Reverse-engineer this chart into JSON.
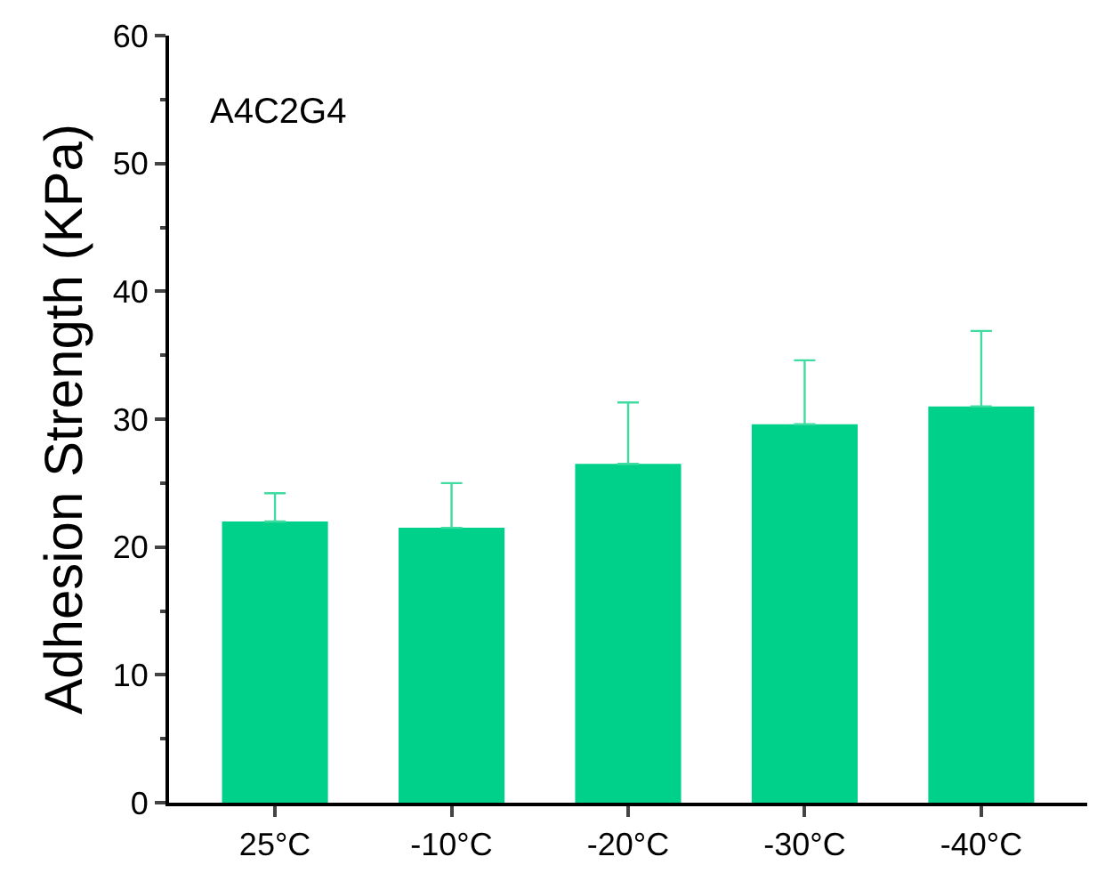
{
  "chart_data": {
    "type": "bar",
    "ylabel": "Adhesion Strength (KPa)",
    "annotations": [
      "A4C2G4"
    ],
    "categories": [
      "25°C",
      "-10°C",
      "-20°C",
      "-30°C",
      "-40°C"
    ],
    "values": [
      22.0,
      21.5,
      26.5,
      29.6,
      31.0
    ],
    "errors": [
      [
        22.0,
        24.2
      ],
      [
        21.5,
        25.0
      ],
      [
        26.5,
        31.3
      ],
      [
        29.6,
        34.6
      ],
      [
        31.0,
        36.9
      ]
    ],
    "color": "#00d18a",
    "ylim": [
      0,
      60
    ],
    "yticks": [
      0,
      10,
      20,
      30,
      40,
      50,
      60
    ]
  }
}
